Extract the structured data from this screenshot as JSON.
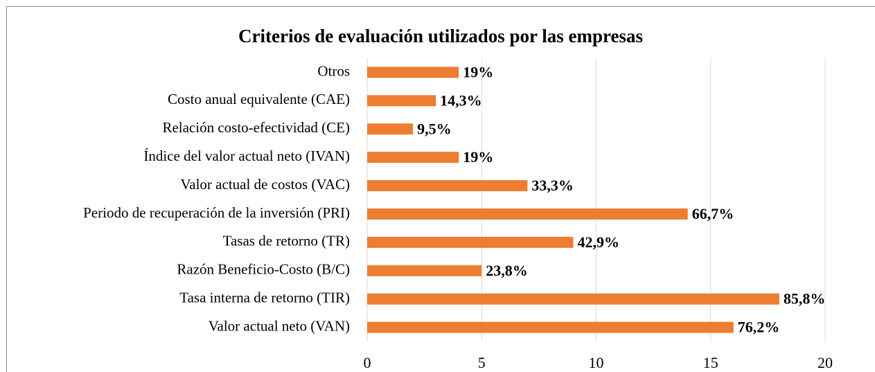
{
  "chart_data": {
    "type": "bar",
    "orientation": "horizontal",
    "title": "Criterios de evaluación utilizados por las empresas",
    "categories": [
      "Otros",
      "Costo anual equivalente (CAE)",
      "Relación costo-efectividad (CE)",
      "Índice del valor actual neto (IVAN)",
      "Valor actual de costos (VAC)",
      "Periodo de recuperación de la inversión (PRI)",
      "Tasas de retorno (TR)",
      "Razón Beneficio-Costo (B/C)",
      "Tasa interna de retorno (TIR)",
      "Valor actual neto (VAN)"
    ],
    "values": [
      4,
      3,
      2,
      4,
      7,
      14,
      9,
      5,
      18,
      16
    ],
    "value_labels": [
      "19%",
      "14,3%",
      "9,5%",
      "19%",
      "33,3%",
      "66,7%",
      "42,9%",
      "23,8%",
      "85,8%",
      "76,2%"
    ],
    "color": "#ed7d31",
    "xlim": [
      0,
      20
    ],
    "xticks": [
      0,
      5,
      10,
      15,
      20
    ],
    "grid": true
  }
}
